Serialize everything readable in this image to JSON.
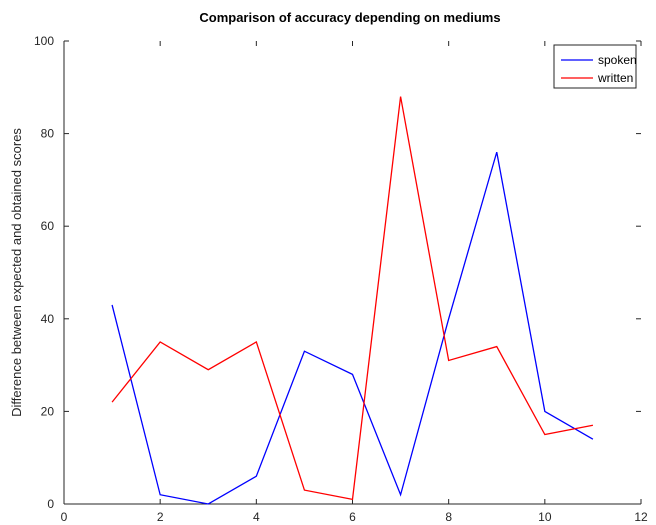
{
  "chart_data": {
    "type": "line",
    "title": "Comparison of accuracy depending on mediums",
    "xlabel": "",
    "ylabel": "Difference between expected and obtained scores",
    "xlim": [
      0,
      12
    ],
    "ylim": [
      0,
      100
    ],
    "xticks": [
      0,
      2,
      4,
      6,
      8,
      10,
      12
    ],
    "yticks": [
      0,
      20,
      40,
      60,
      80,
      100
    ],
    "grid": false,
    "legend_position": "top-right",
    "x": [
      1,
      2,
      3,
      4,
      5,
      6,
      7,
      8,
      9,
      10,
      11
    ],
    "series": [
      {
        "name": "spoken",
        "color": "#0000ff",
        "values": [
          43,
          2,
          0,
          6,
          33,
          28,
          2,
          40,
          76,
          20,
          14
        ]
      },
      {
        "name": "written",
        "color": "#ff0000",
        "values": [
          22,
          35,
          29,
          35,
          3,
          1,
          88,
          31,
          34,
          15,
          17
        ]
      }
    ]
  }
}
